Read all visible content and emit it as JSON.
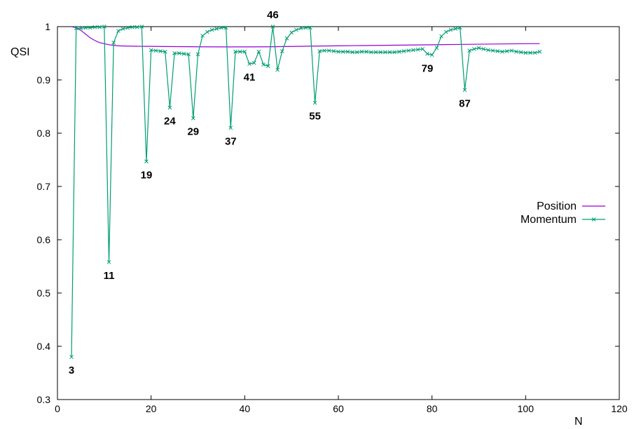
{
  "chart_data": {
    "type": "line",
    "xlabel": "N",
    "ylabel": "QSI",
    "xlim": [
      0,
      120
    ],
    "ylim": [
      0.3,
      1.0
    ],
    "xticks": [
      0,
      20,
      40,
      60,
      80,
      100,
      120
    ],
    "yticks": [
      0.3,
      0.4,
      0.5,
      0.6,
      0.7,
      0.8,
      0.9,
      1.0
    ],
    "ytick_labels": [
      "0.3",
      "0.4",
      "0.5",
      "0.6",
      "0.7",
      "0.8",
      "0.9",
      "1"
    ],
    "legend_position": "right",
    "series": [
      {
        "name": "Position",
        "color": "#9400d3",
        "marker": "none",
        "x": [
          3,
          4,
          5,
          6,
          7,
          8,
          9,
          10,
          11,
          12,
          13,
          14,
          15,
          16,
          17,
          18,
          19,
          20,
          25,
          30,
          35,
          40,
          45,
          50,
          55,
          60,
          65,
          70,
          75,
          80,
          85,
          90,
          95,
          100,
          103
        ],
        "y": [
          1.0,
          0.998,
          0.993,
          0.986,
          0.979,
          0.974,
          0.97,
          0.968,
          0.966,
          0.965,
          0.964,
          0.9637,
          0.9635,
          0.9633,
          0.9632,
          0.9631,
          0.963,
          0.963,
          0.9625,
          0.9622,
          0.962,
          0.962,
          0.9622,
          0.9628,
          0.9635,
          0.964,
          0.9645,
          0.965,
          0.9655,
          0.966,
          0.9665,
          0.967,
          0.9675,
          0.968,
          0.968
        ]
      },
      {
        "name": "Momentum",
        "color": "#009e73",
        "marker": "x",
        "x": [
          3,
          4,
          5,
          6,
          7,
          8,
          9,
          10,
          11,
          12,
          13,
          14,
          15,
          16,
          17,
          18,
          19,
          20,
          21,
          22,
          23,
          24,
          25,
          26,
          27,
          28,
          29,
          30,
          31,
          32,
          33,
          34,
          35,
          36,
          37,
          38,
          39,
          40,
          41,
          42,
          43,
          44,
          45,
          46,
          47,
          48,
          49,
          50,
          51,
          52,
          53,
          54,
          55,
          56,
          57,
          58,
          59,
          60,
          61,
          62,
          63,
          64,
          65,
          66,
          67,
          68,
          69,
          70,
          71,
          72,
          73,
          74,
          75,
          76,
          77,
          78,
          79,
          80,
          81,
          82,
          83,
          84,
          85,
          86,
          87,
          88,
          89,
          90,
          91,
          92,
          93,
          94,
          95,
          96,
          97,
          98,
          99,
          100,
          101,
          102,
          103
        ],
        "y": [
          0.38,
          0.997,
          0.997,
          0.998,
          0.998,
          0.999,
          0.999,
          1.0,
          0.558,
          0.97,
          0.992,
          0.996,
          0.998,
          0.999,
          0.999,
          1.0,
          0.747,
          0.956,
          0.955,
          0.954,
          0.953,
          0.848,
          0.95,
          0.95,
          0.949,
          0.948,
          0.828,
          0.948,
          0.983,
          0.99,
          0.994,
          0.996,
          0.998,
          0.998,
          0.81,
          0.953,
          0.953,
          0.953,
          0.93,
          0.932,
          0.953,
          0.929,
          0.926,
          1.0,
          0.919,
          0.954,
          0.978,
          0.989,
          0.994,
          0.997,
          0.998,
          0.998,
          0.857,
          0.954,
          0.955,
          0.955,
          0.954,
          0.953,
          0.953,
          0.953,
          0.952,
          0.952,
          0.953,
          0.953,
          0.952,
          0.952,
          0.952,
          0.952,
          0.952,
          0.952,
          0.953,
          0.954,
          0.955,
          0.956,
          0.957,
          0.958,
          0.949,
          0.947,
          0.96,
          0.982,
          0.99,
          0.994,
          0.996,
          0.998,
          0.881,
          0.955,
          0.958,
          0.96,
          0.958,
          0.956,
          0.955,
          0.954,
          0.953,
          0.954,
          0.955,
          0.953,
          0.952,
          0.951,
          0.951,
          0.951,
          0.953
        ]
      }
    ],
    "annotations": [
      {
        "text": "3",
        "x": 3,
        "y": 0.38
      },
      {
        "text": "11",
        "x": 11,
        "y": 0.558
      },
      {
        "text": "19",
        "x": 19,
        "y": 0.747
      },
      {
        "text": "24",
        "x": 24,
        "y": 0.848
      },
      {
        "text": "29",
        "x": 29,
        "y": 0.828
      },
      {
        "text": "37",
        "x": 37,
        "y": 0.81
      },
      {
        "text": "41",
        "x": 41,
        "y": 0.93
      },
      {
        "text": "46",
        "x": 46,
        "y": 1.0
      },
      {
        "text": "55",
        "x": 55,
        "y": 0.857
      },
      {
        "text": "79",
        "x": 79,
        "y": 0.947
      },
      {
        "text": "87",
        "x": 87,
        "y": 0.881
      }
    ]
  }
}
